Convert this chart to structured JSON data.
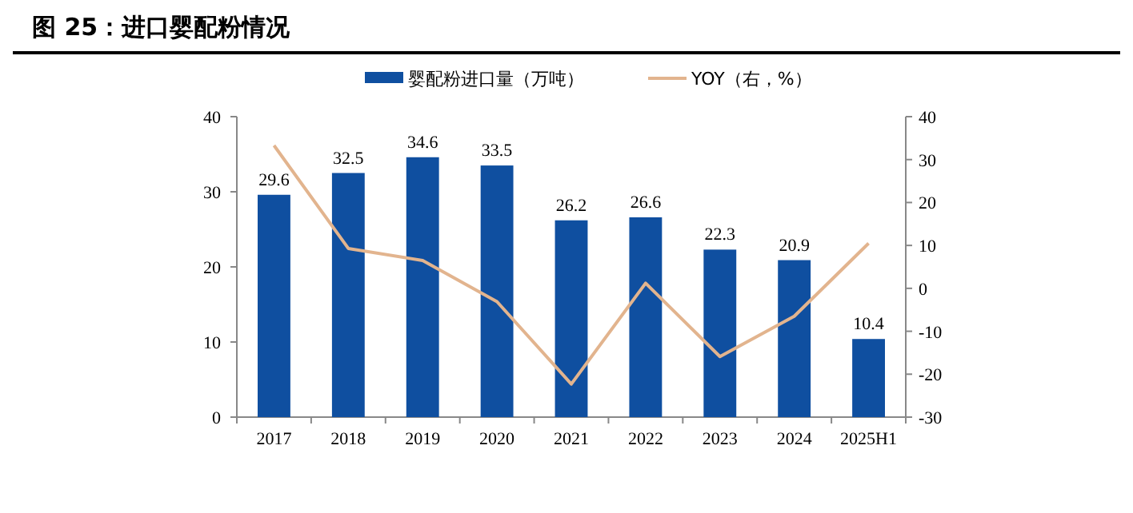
{
  "chart_data": {
    "type": "bar",
    "title": "图 25：进口婴配粉情况",
    "categories": [
      "2017",
      "2018",
      "2019",
      "2020",
      "2021",
      "2022",
      "2023",
      "2024",
      "2025H1"
    ],
    "series": [
      {
        "name": "婴配粉进口量（万吨）",
        "color": "#0f4fa0",
        "values": [
          29.6,
          32.5,
          34.6,
          33.5,
          26.2,
          26.6,
          22.3,
          20.9,
          10.4
        ],
        "value_labels": [
          "29.6",
          "32.5",
          "34.6",
          "33.5",
          "26.2",
          "26.6",
          "22.3",
          "20.9",
          "10.4"
        ]
      },
      {
        "name": "YOY（右，%）",
        "type": "line",
        "axis": "y2",
        "color": "#e2b48e",
        "marker": "none",
        "values": [
          33.3,
          9.3,
          6.5,
          -3.1,
          -22.3,
          1.2,
          -15.9,
          -6.5,
          10.5
        ]
      }
    ],
    "ylim": [
      0,
      40
    ],
    "yticks": [
      0,
      10,
      20,
      30,
      40
    ],
    "y2lim": [
      -30,
      40
    ],
    "y2ticks": [
      -30,
      -20,
      -10,
      0,
      10,
      20,
      30,
      40
    ],
    "grid": false,
    "legend": "top"
  }
}
